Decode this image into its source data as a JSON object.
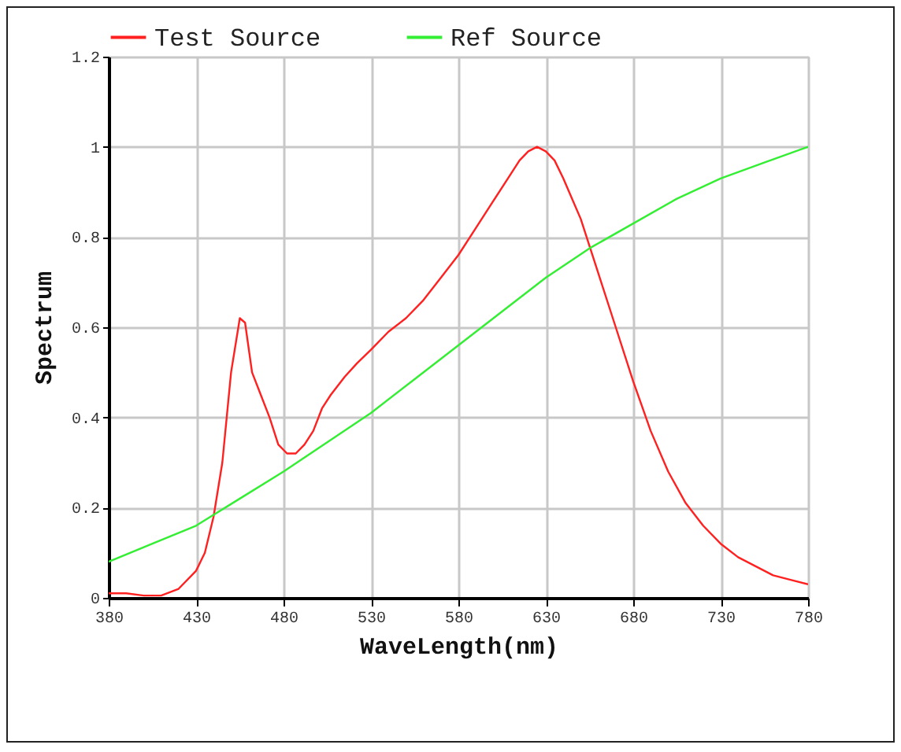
{
  "chart_data": {
    "type": "line",
    "xlabel": "WaveLength(nm)",
    "ylabel": "Spectrum",
    "xlim": [
      380,
      780
    ],
    "xticks": [
      380,
      430,
      480,
      530,
      580,
      630,
      680,
      730,
      780
    ],
    "ylim": [
      0,
      1.2
    ],
    "yticks": [
      0,
      0.2,
      0.4,
      0.6,
      0.8,
      1,
      1.2
    ],
    "grid": true,
    "legend": "top",
    "series": [
      {
        "name": "Test Source",
        "color": "#ff2020",
        "x": [
          380,
          390,
          400,
          410,
          420,
          430,
          435,
          440,
          445,
          450,
          455,
          458,
          462,
          467,
          472,
          477,
          482,
          487,
          492,
          497,
          502,
          507,
          515,
          522,
          530,
          540,
          550,
          560,
          570,
          580,
          590,
          600,
          610,
          615,
          620,
          625,
          630,
          635,
          640,
          650,
          660,
          670,
          680,
          690,
          700,
          710,
          720,
          730,
          740,
          750,
          760,
          770,
          780
        ],
        "values": [
          0.01,
          0.01,
          0.005,
          0.005,
          0.02,
          0.06,
          0.1,
          0.18,
          0.3,
          0.5,
          0.62,
          0.61,
          0.5,
          0.45,
          0.4,
          0.34,
          0.32,
          0.32,
          0.34,
          0.37,
          0.42,
          0.45,
          0.49,
          0.52,
          0.55,
          0.59,
          0.62,
          0.66,
          0.71,
          0.76,
          0.82,
          0.88,
          0.94,
          0.97,
          0.99,
          1.0,
          0.99,
          0.97,
          0.93,
          0.84,
          0.72,
          0.6,
          0.48,
          0.37,
          0.28,
          0.21,
          0.16,
          0.12,
          0.09,
          0.07,
          0.05,
          0.04,
          0.03
        ]
      },
      {
        "name": "Ref Source",
        "color": "#33ee33",
        "x": [
          380,
          405,
          430,
          455,
          480,
          505,
          530,
          555,
          580,
          605,
          630,
          655,
          680,
          705,
          730,
          755,
          780
        ],
        "values": [
          0.08,
          0.12,
          0.16,
          0.22,
          0.28,
          0.345,
          0.41,
          0.485,
          0.56,
          0.635,
          0.71,
          0.775,
          0.83,
          0.885,
          0.93,
          0.965,
          1.0
        ]
      }
    ]
  }
}
